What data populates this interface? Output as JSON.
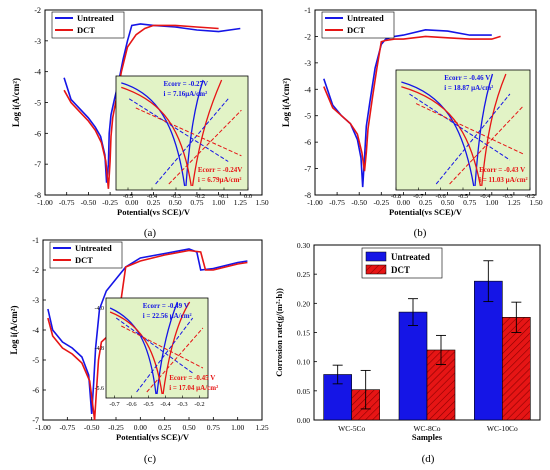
{
  "figure": {
    "panel_labels": [
      "(a)",
      "(b)",
      "(c)",
      "(d)"
    ],
    "colors": {
      "untreated": "#1515e6",
      "dct": "#e61515",
      "inset_bg": "#e2f3c6"
    }
  },
  "chart_data": [
    {
      "type": "line",
      "panel": "(a)",
      "xlabel": "Potential(vs SCE)/V",
      "ylabel": "Log i(A/cm²)",
      "xlim": [
        -1.0,
        1.5
      ],
      "ylim": [
        -8,
        -2
      ],
      "xticks": [
        "-1.00",
        "-0.75",
        "-0.50",
        "-0.25",
        "0.00",
        "0.25",
        "0.50",
        "0.75",
        "1.00",
        "1.25",
        "1.50"
      ],
      "yticks": [
        "-2",
        "-3",
        "-4",
        "-5",
        "-6",
        "-7",
        "-8"
      ],
      "legend": [
        "Untreated",
        "DCT"
      ],
      "legend_position": "top-left",
      "series": [
        {
          "name": "Untreated",
          "x": [
            -0.78,
            -0.7,
            -0.6,
            -0.5,
            -0.42,
            -0.36,
            -0.31,
            -0.29,
            -0.27,
            -0.26,
            -0.24,
            -0.2,
            -0.15,
            -0.1,
            -0.05,
            0.0,
            0.1,
            0.25,
            0.5,
            0.75,
            1.0,
            1.25
          ],
          "y": [
            -4.2,
            -4.9,
            -5.2,
            -5.5,
            -5.8,
            -6.1,
            -6.7,
            -7.6,
            -7.0,
            -6.0,
            -5.4,
            -4.9,
            -4.3,
            -3.6,
            -3.0,
            -2.5,
            -2.45,
            -2.5,
            -2.55,
            -2.65,
            -2.7,
            -2.6
          ]
        },
        {
          "name": "DCT",
          "x": [
            -0.78,
            -0.7,
            -0.6,
            -0.5,
            -0.42,
            -0.35,
            -0.3,
            -0.27,
            -0.25,
            -0.24,
            -0.22,
            -0.18,
            -0.12,
            -0.05,
            0.05,
            0.15,
            0.25,
            0.5,
            0.75,
            1.0
          ],
          "y": [
            -4.6,
            -5.0,
            -5.3,
            -5.6,
            -5.9,
            -6.3,
            -6.9,
            -7.8,
            -6.9,
            -6.1,
            -5.5,
            -4.9,
            -4.0,
            -3.2,
            -2.8,
            -2.6,
            -2.5,
            -2.5,
            -2.55,
            -2.6
          ]
        }
      ],
      "inset": {
        "xlim": [
          -0.55,
          0.0
        ],
        "xticks": [
          "-0.5",
          "-0.4",
          "-0.3",
          "-0.2",
          "-0.1",
          "0.0"
        ],
        "annotations": [
          {
            "lines": [
              "Ecorr = -0.27V",
              "i = 7.16μA/cm²"
            ],
            "series": "Untreated"
          },
          {
            "lines": [
              "Ecorr = -0.24V",
              "i = 6.79μA/cm²"
            ],
            "series": "DCT"
          }
        ]
      }
    },
    {
      "type": "line",
      "panel": "(b)",
      "xlabel": "Potential(vs SCE)/V",
      "ylabel": "Log i(A/cm²)",
      "xlim": [
        -1.0,
        1.5
      ],
      "ylim": [
        -8,
        -1
      ],
      "xticks": [
        "-1.00",
        "-0.75",
        "-0.50",
        "-0.25",
        "0.00",
        "0.25",
        "0.50",
        "0.75",
        "1.00",
        "1.25",
        "1.50"
      ],
      "yticks": [
        "-1",
        "-2",
        "-3",
        "-4",
        "-5",
        "-6",
        "-7",
        "-8"
      ],
      "legend": [
        "Untreated",
        "DCT"
      ],
      "legend_position": "top-left",
      "series": [
        {
          "name": "Untreated",
          "x": [
            -0.9,
            -0.8,
            -0.7,
            -0.6,
            -0.52,
            -0.48,
            -0.46,
            -0.44,
            -0.42,
            -0.38,
            -0.32,
            -0.25,
            -0.2,
            -0.1,
            0.0,
            0.25,
            0.5,
            0.75,
            1.0
          ],
          "y": [
            -3.6,
            -4.6,
            -5.0,
            -5.3,
            -5.9,
            -6.6,
            -7.7,
            -6.6,
            -5.4,
            -4.5,
            -3.2,
            -2.3,
            -2.1,
            -2.0,
            -1.95,
            -1.75,
            -1.8,
            -1.95,
            -1.95
          ]
        },
        {
          "name": "DCT",
          "x": [
            -0.9,
            -0.8,
            -0.7,
            -0.6,
            -0.52,
            -0.47,
            -0.44,
            -0.42,
            -0.4,
            -0.35,
            -0.3,
            -0.25,
            -0.2,
            -0.1,
            0.0,
            0.25,
            0.5,
            0.75,
            1.0,
            1.1
          ],
          "y": [
            -3.9,
            -4.7,
            -5.0,
            -5.3,
            -5.7,
            -6.4,
            -7.1,
            -6.4,
            -5.5,
            -4.3,
            -3.2,
            -2.2,
            -2.15,
            -2.1,
            -2.1,
            -2.0,
            -2.05,
            -2.1,
            -2.1,
            -2.0
          ]
        }
      ],
      "inset": {
        "xlim": [
          -0.8,
          -0.2
        ],
        "xticks": [
          "-0.8",
          "-0.7",
          "-0.6",
          "-0.5",
          "-0.4",
          "-0.3",
          "-0.2"
        ],
        "annotations": [
          {
            "lines": [
              "Ecorr = -0.46 V",
              "i = 18.87 μA/cm²"
            ],
            "series": "Untreated"
          },
          {
            "lines": [
              "Ecorr = -0.43 V",
              "i = 11.03 μA/cm²"
            ],
            "series": "DCT"
          }
        ]
      }
    },
    {
      "type": "line",
      "panel": "(c)",
      "xlabel": "Potential(vs SCE)/V",
      "ylabel": "Log i(A/cm²)",
      "xlim": [
        -1.0,
        1.25
      ],
      "ylim": [
        -7,
        -1
      ],
      "xticks": [
        "-1.00",
        "-0.75",
        "-0.50",
        "-0.25",
        "0.00",
        "0.25",
        "0.50",
        "0.75",
        "1.00",
        "1.25"
      ],
      "yticks": [
        "-1",
        "-2",
        "-3",
        "-4",
        "-5",
        "-6",
        "-7"
      ],
      "legend": [
        "Untreated",
        "DCT"
      ],
      "legend_position": "top-left",
      "series": [
        {
          "name": "Untreated",
          "x": [
            -0.95,
            -0.9,
            -0.8,
            -0.7,
            -0.6,
            -0.53,
            -0.5,
            -0.48,
            -0.46,
            -0.42,
            -0.35,
            -0.25,
            -0.15,
            0.0,
            0.25,
            0.5,
            0.58,
            0.62,
            0.75,
            1.0,
            1.1
          ],
          "y": [
            -3.3,
            -4.0,
            -4.4,
            -4.6,
            -4.9,
            -5.5,
            -6.8,
            -5.8,
            -4.6,
            -3.3,
            -2.7,
            -2.3,
            -1.9,
            -1.6,
            -1.45,
            -1.3,
            -1.4,
            -2.0,
            -1.95,
            -1.75,
            -1.7
          ]
        },
        {
          "name": "DCT",
          "x": [
            -0.95,
            -0.9,
            -0.8,
            -0.7,
            -0.6,
            -0.52,
            -0.47,
            -0.45,
            -0.43,
            -0.4,
            -0.3,
            -0.22,
            -0.15,
            0.0,
            0.25,
            0.5,
            0.62,
            0.67,
            0.75,
            1.0,
            1.1
          ],
          "y": [
            -3.6,
            -4.2,
            -4.6,
            -4.8,
            -5.1,
            -5.7,
            -7.0,
            -6.0,
            -5.0,
            -4.4,
            -4.1,
            -3.5,
            -1.9,
            -1.7,
            -1.5,
            -1.35,
            -1.4,
            -2.0,
            -2.0,
            -1.8,
            -1.75
          ]
        }
      ],
      "inset": {
        "xlim": [
          -0.75,
          -0.15
        ],
        "yticks": [
          "-4.0",
          "-4.8",
          "-5.6"
        ],
        "xticks": [
          "-0.7",
          "-0.6",
          "-0.5",
          "-0.4",
          "-0.3",
          "-0.2"
        ],
        "annotations": [
          {
            "lines": [
              "Ecorr = -0.49 V",
              "i = 22.56 μA/cm²"
            ],
            "series": "Untreated"
          },
          {
            "lines": [
              "Ecorr = -0.45 V",
              "i = 17.04 μA/cm²"
            ],
            "series": "DCT"
          }
        ]
      }
    },
    {
      "type": "bar",
      "panel": "(d)",
      "xlabel": "Samples",
      "ylabel": "Corrosion rate(g/(m²·h))",
      "ylim": [
        0.0,
        0.3
      ],
      "yticks": [
        "0.00",
        "0.05",
        "0.10",
        "0.15",
        "0.20",
        "0.25",
        "0.30"
      ],
      "categories": [
        "WC-5Co",
        "WC-8Co",
        "WC-10Co"
      ],
      "legend": [
        "Untreated",
        "DCT"
      ],
      "legend_position": "top-left",
      "series": [
        {
          "name": "Untreated",
          "values": [
            0.078,
            0.185,
            0.238
          ],
          "errors": [
            0.016,
            0.023,
            0.035
          ]
        },
        {
          "name": "DCT",
          "values": [
            0.052,
            0.12,
            0.176
          ],
          "errors": [
            0.033,
            0.025,
            0.026
          ]
        }
      ]
    }
  ]
}
